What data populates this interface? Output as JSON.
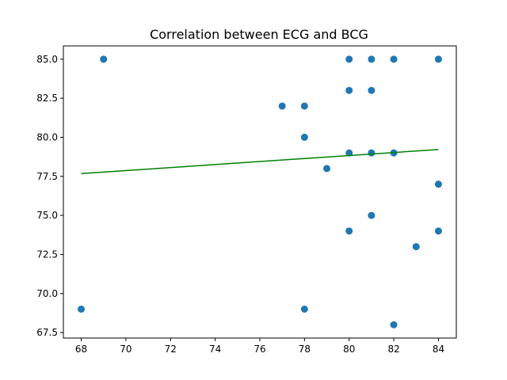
{
  "chart_data": {
    "type": "scatter",
    "title": "Correlation between ECG and BCG",
    "xlabel": "",
    "ylabel": "",
    "xlim": [
      67.2,
      84.8
    ],
    "ylim": [
      67.15,
      85.85
    ],
    "xticks": [
      "68",
      "70",
      "72",
      "74",
      "76",
      "78",
      "80",
      "82",
      "84"
    ],
    "yticks": [
      "67.5",
      "70.0",
      "72.5",
      "75.0",
      "77.5",
      "80.0",
      "82.5",
      "85.0"
    ],
    "grid": false,
    "legend": "none",
    "colors": {
      "points": "#1f77b4",
      "fit_line": "#008000"
    },
    "points": [
      {
        "x": 69,
        "y": 85
      },
      {
        "x": 80,
        "y": 85
      },
      {
        "x": 81,
        "y": 85
      },
      {
        "x": 82,
        "y": 85
      },
      {
        "x": 84,
        "y": 85
      },
      {
        "x": 80,
        "y": 83
      },
      {
        "x": 81,
        "y": 83
      },
      {
        "x": 77,
        "y": 82
      },
      {
        "x": 78,
        "y": 82
      },
      {
        "x": 78,
        "y": 80
      },
      {
        "x": 80,
        "y": 79
      },
      {
        "x": 81,
        "y": 79
      },
      {
        "x": 82,
        "y": 79
      },
      {
        "x": 79,
        "y": 78
      },
      {
        "x": 84,
        "y": 77
      },
      {
        "x": 81,
        "y": 75
      },
      {
        "x": 80,
        "y": 74
      },
      {
        "x": 84,
        "y": 74
      },
      {
        "x": 83,
        "y": 73
      },
      {
        "x": 68,
        "y": 69
      },
      {
        "x": 78,
        "y": 69
      },
      {
        "x": 82,
        "y": 68
      }
    ],
    "fit_line": {
      "x": [
        68,
        84
      ],
      "y": [
        77.68,
        79.22
      ]
    }
  }
}
